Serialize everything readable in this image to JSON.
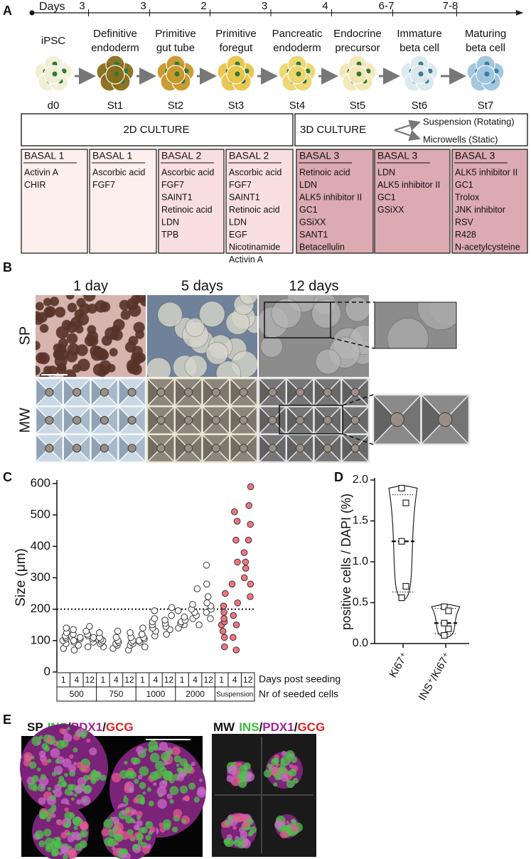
{
  "panel_a": {
    "label": "A",
    "timeline_label": "Days",
    "durations": [
      "3",
      "3",
      "2",
      "3",
      "4",
      "6-7",
      "7-8"
    ],
    "stages": [
      {
        "name_lines": [
          "iPSC"
        ],
        "label": "d0",
        "color": "#f2efd6"
      },
      {
        "name_lines": [
          "Definitive",
          "endoderm"
        ],
        "label": "St1",
        "color": "#8a6d1a"
      },
      {
        "name_lines": [
          "Primitive",
          "gut tube"
        ],
        "label": "St2",
        "color": "#c9972a"
      },
      {
        "name_lines": [
          "Primitive",
          "foregut"
        ],
        "label": "St3",
        "color": "#e9c547"
      },
      {
        "name_lines": [
          "Pancreatic",
          "endoderm"
        ],
        "label": "St4",
        "color": "#eed66c"
      },
      {
        "name_lines": [
          "Endocrine",
          "precursor"
        ],
        "label": "St5",
        "color": "#f3e7b4"
      },
      {
        "name_lines": [
          "Immature",
          "beta cell"
        ],
        "label": "St6",
        "color": "#dbe9ee"
      },
      {
        "name_lines": [
          "Maturing",
          "beta cell"
        ],
        "label": "St7",
        "color": "#9ec5de"
      }
    ],
    "culture_2d": "2D CULTURE",
    "culture_3d": "3D CULTURE",
    "culture_options": [
      "Suspension (Rotating)",
      "Microwells (Static)"
    ],
    "media": [
      {
        "title": "BASAL 1",
        "color": "#fdf0ec",
        "items": [
          "Activin A",
          "CHIR"
        ]
      },
      {
        "title": "BASAL 1",
        "color": "#fdf0ec",
        "items": [
          "Ascorbic acid",
          "FGF7"
        ]
      },
      {
        "title": "BASAL 2",
        "color": "#f9dfe2",
        "items": [
          "Ascorbic acid",
          "FGF7",
          "SAINT1",
          "Retinoic acid",
          "LDN",
          "TPB"
        ]
      },
      {
        "title": "BASAL 2",
        "color": "#f9dfe2",
        "items": [
          "Ascorbic acid",
          "FGF7",
          "SAINT1",
          "Retinoic acid",
          "LDN",
          "EGF",
          "Nicotinamide",
          "Activin A"
        ]
      },
      {
        "title": "BASAL 3",
        "color": "#dcaab1",
        "items": [
          "Retinoic acid",
          "LDN",
          "ALK5 inhibitor II",
          "GC1",
          "GSiXX",
          "SANT1",
          "Betacellulin"
        ]
      },
      {
        "title": "BASAL 3",
        "color": "#dcaab1",
        "items": [
          "LDN",
          "ALK5 inhibitor II",
          "GC1",
          "GSiXX"
        ]
      },
      {
        "title": "BASAL 3",
        "color": "#dcaab1",
        "items": [
          "ALK5 inhibitor II",
          "GC1",
          "Trolox",
          "JNK inhibitor",
          "RSV",
          "R428",
          "N-acetylcysteine"
        ]
      }
    ]
  },
  "panel_b": {
    "label": "B",
    "columns": [
      "1 day",
      "5 days",
      "12 days"
    ],
    "rows": [
      "SP",
      "MW"
    ]
  },
  "chart_data": [
    {
      "type": "scatter",
      "panel_label": "C",
      "y_label": "Size (μm)",
      "ylim": [
        0,
        600
      ],
      "yticks": [
        0,
        100,
        200,
        300,
        400,
        500,
        600
      ],
      "reference_line": 200,
      "categories": [
        "1",
        "4",
        "12",
        "1",
        "4",
        "12",
        "1",
        "4",
        "12",
        "1",
        "4",
        "12",
        "1",
        "4",
        "12"
      ],
      "groups": [
        "500",
        "750",
        "1000",
        "2000",
        "Suspension"
      ],
      "row_labels": [
        "Days post seeding",
        "Nr of seeded cells"
      ],
      "point_colors": [
        "#ffffff",
        "#ffffff",
        "#ffffff",
        "#ffffff",
        "#ffffff",
        "#ffffff",
        "#ffffff",
        "#ffffff",
        "#ffffff",
        "#ffffff",
        "#ffffff",
        "#ffffff",
        "#f07480",
        "#f07480",
        "#f07480"
      ],
      "values": [
        [
          75,
          90,
          100,
          105,
          110,
          115,
          125,
          140
        ],
        [
          70,
          85,
          95,
          100,
          105,
          110,
          120,
          135
        ],
        [
          80,
          95,
          105,
          110,
          115,
          120,
          130,
          145
        ],
        [
          80,
          90,
          95,
          100,
          105,
          110,
          125
        ],
        [
          75,
          85,
          90,
          95,
          100,
          110,
          130
        ],
        [
          70,
          85,
          90,
          95,
          100,
          110,
          125
        ],
        [
          80,
          95,
          100,
          105,
          110,
          120,
          140
        ],
        [
          115,
          130,
          140,
          150,
          160,
          170,
          195
        ],
        [
          120,
          135,
          145,
          155,
          165,
          180,
          205
        ],
        [
          140,
          150,
          155,
          160,
          165,
          175,
          195
        ],
        [
          150,
          170,
          180,
          190,
          200,
          215,
          265
        ],
        [
          170,
          190,
          200,
          210,
          220,
          240,
          280,
          340
        ],
        [
          80,
          110,
          130,
          150,
          160,
          170,
          190,
          210,
          250
        ],
        [
          70,
          110,
          150,
          180,
          220,
          280,
          350,
          420,
          480,
          510
        ],
        [
          240,
          280,
          300,
          330,
          350,
          380,
          420,
          470,
          530,
          590
        ]
      ]
    },
    {
      "type": "violin",
      "panel_label": "D",
      "y_label": "positive cells / DAPI (%)",
      "ylim": [
        0,
        2
      ],
      "yticks": [
        {
          "value": 0,
          "label": "0.0"
        },
        0.5,
        {
          "value": 1,
          "label": "1.0"
        },
        1.5,
        {
          "value": 2,
          "label": "2.0"
        }
      ],
      "categories": [
        "Ki67⁺",
        "INS⁺/Ki67⁺"
      ],
      "values": [
        [
          1.9,
          1.72,
          1.25,
          0.7,
          0.56
        ],
        [
          0.45,
          0.4,
          0.25,
          0.18,
          0.1
        ]
      ],
      "medians": [
        1.25,
        0.25
      ],
      "quartiles": [
        [
          0.63,
          1.82
        ],
        [
          0.12,
          0.43
        ]
      ]
    }
  ],
  "panel_e": {
    "label": "E",
    "separator": "/",
    "groups": [
      {
        "name": "SP",
        "stains": [
          {
            "text": "INS",
            "color": "#3dbb3d"
          },
          {
            "text": "PDX1",
            "color": "#a0259a"
          },
          {
            "text": "GCG",
            "color": "#e01f1f"
          }
        ]
      },
      {
        "name": "MW",
        "stains": [
          {
            "text": "INS",
            "color": "#3dbb3d"
          },
          {
            "text": "PDX1",
            "color": "#a0259a"
          },
          {
            "text": "GCG",
            "color": "#e01f1f"
          }
        ]
      }
    ]
  }
}
